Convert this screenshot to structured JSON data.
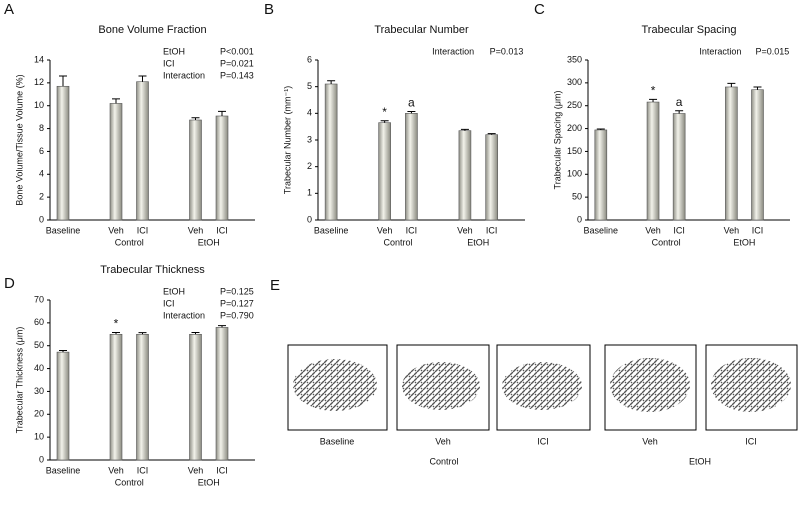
{
  "chart_data": [
    {
      "type": "bar",
      "panel": "A",
      "title": "Bone Volume Fraction",
      "y_label": "Bone Volume/Tissue Volume (%)",
      "categories": [
        "Baseline",
        "Veh",
        "ICI",
        "Veh",
        "ICI"
      ],
      "groups": [
        null,
        "Control",
        "Control",
        "EtOH",
        "EtOH"
      ],
      "values": [
        11.7,
        10.2,
        12.1,
        8.75,
        9.1
      ],
      "error": [
        0.9,
        0.4,
        0.5,
        0.2,
        0.4
      ],
      "markers": [
        null,
        null,
        null,
        null,
        null
      ],
      "stats": [
        [
          "EtOH",
          "P<0.001"
        ],
        [
          "ICI",
          "P=0.021"
        ],
        [
          "Interaction",
          "P=0.143"
        ]
      ],
      "ylim": [
        0,
        14
      ],
      "yticks": [
        0,
        2,
        4,
        6,
        8,
        10,
        12,
        14
      ],
      "color": "#cfcfc4"
    },
    {
      "type": "bar",
      "panel": "B",
      "title": "Trabecular Number",
      "y_label": "Trabecular Number (mm⁻¹)",
      "categories": [
        "Baseline",
        "Veh",
        "ICI",
        "Veh",
        "ICI"
      ],
      "groups": [
        null,
        "Control",
        "Control",
        "EtOH",
        "EtOH"
      ],
      "values": [
        5.1,
        3.65,
        4.0,
        3.35,
        3.2
      ],
      "error": [
        0.12,
        0.07,
        0.07,
        0.05,
        0.04
      ],
      "markers": [
        null,
        "*",
        "a",
        null,
        null
      ],
      "stats": [
        [
          "Interaction",
          "P=0.013"
        ]
      ],
      "ylim": [
        0,
        6
      ],
      "yticks": [
        0,
        1,
        2,
        3,
        4,
        5,
        6
      ],
      "color": "#cfcfc4"
    },
    {
      "type": "bar",
      "panel": "C",
      "title": "Trabecular Spacing",
      "y_label": "Trabecular Spacing (μm)",
      "categories": [
        "Baseline",
        "Veh",
        "ICI",
        "Veh",
        "ICI"
      ],
      "groups": [
        null,
        "Control",
        "Control",
        "EtOH",
        "EtOH"
      ],
      "values": [
        197,
        258,
        233,
        291,
        285
      ],
      "error": [
        2,
        6,
        6,
        8,
        6
      ],
      "markers": [
        null,
        "*",
        "a",
        null,
        null
      ],
      "stats": [
        [
          "Interaction",
          "P=0.015"
        ]
      ],
      "ylim": [
        0,
        350
      ],
      "yticks": [
        0,
        50,
        100,
        150,
        200,
        250,
        300,
        350
      ],
      "color": "#cfcfc4"
    },
    {
      "type": "bar",
      "panel": "D",
      "title": "Trabecular Thickness",
      "y_label": "Trabecular Thickness (μm)",
      "categories": [
        "Baseline",
        "Veh",
        "ICI",
        "Veh",
        "ICI"
      ],
      "groups": [
        null,
        "Control",
        "Control",
        "EtOH",
        "EtOH"
      ],
      "values": [
        47.2,
        55,
        55,
        55,
        58
      ],
      "error": [
        0.7,
        0.8,
        0.7,
        0.8,
        0.8
      ],
      "markers": [
        null,
        "*",
        null,
        null,
        null
      ],
      "stats": [
        [
          "EtOH",
          "P=0.125"
        ],
        [
          "ICI",
          "P=0.127"
        ],
        [
          "Interaction",
          "P=0.790"
        ]
      ],
      "ylim": [
        0,
        70
      ],
      "yticks": [
        0,
        10,
        20,
        30,
        40,
        50,
        60,
        70
      ],
      "color": "#cfcfc4"
    }
  ],
  "image_panel": {
    "panel": "E",
    "labels": [
      "Baseline",
      "Veh",
      "ICI",
      "Veh",
      "ICI"
    ],
    "groups": [
      "Control",
      "EtOH"
    ]
  }
}
